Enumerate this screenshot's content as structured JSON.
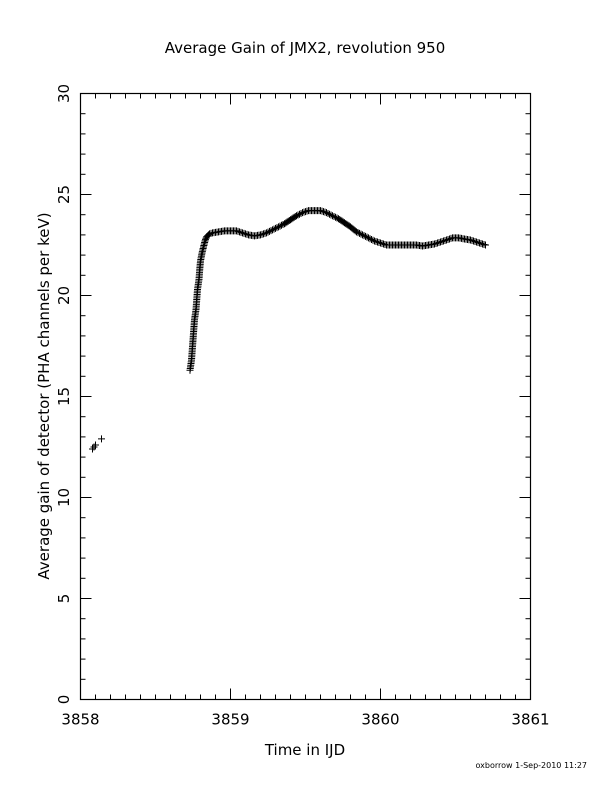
{
  "chart_data": {
    "type": "scatter",
    "title": "Average Gain of JMX2, revolution 950",
    "xlabel": "Time in IJD",
    "ylabel": "Average gain of detector (PHA channels per keV)",
    "xlim": [
      3858,
      3861
    ],
    "ylim": [
      0,
      30
    ],
    "xticks": [
      "3858",
      "3859",
      "3860",
      "3861"
    ],
    "yticks": [
      "0",
      "5",
      "10",
      "15",
      "20",
      "25",
      "30"
    ],
    "grid": false,
    "marker": "plus",
    "series": [
      {
        "points": [
          [
            3858.08,
            12.4
          ],
          [
            3858.09,
            12.5
          ],
          [
            3858.1,
            12.6
          ],
          [
            3858.14,
            12.9
          ],
          [
            3858.73,
            16.3
          ],
          [
            3858.74,
            16.8
          ],
          [
            3858.745,
            17.3
          ],
          [
            3858.75,
            17.8
          ],
          [
            3858.755,
            18.3
          ],
          [
            3858.76,
            18.8
          ],
          [
            3858.77,
            19.3
          ],
          [
            3858.775,
            19.8
          ],
          [
            3858.78,
            20.3
          ],
          [
            3858.79,
            20.8
          ],
          [
            3858.795,
            21.3
          ],
          [
            3858.8,
            21.7
          ],
          [
            3858.81,
            22.1
          ],
          [
            3858.82,
            22.4
          ],
          [
            3858.83,
            22.7
          ],
          [
            3858.84,
            22.9
          ],
          [
            3858.86,
            23.05
          ],
          [
            3858.88,
            23.1
          ],
          [
            3858.92,
            23.15
          ],
          [
            3858.96,
            23.2
          ],
          [
            3859.0,
            23.2
          ],
          [
            3859.04,
            23.2
          ],
          [
            3859.08,
            23.1
          ],
          [
            3859.12,
            23.0
          ],
          [
            3859.16,
            22.95
          ],
          [
            3859.2,
            23.0
          ],
          [
            3859.24,
            23.1
          ],
          [
            3859.28,
            23.25
          ],
          [
            3859.32,
            23.4
          ],
          [
            3859.36,
            23.55
          ],
          [
            3859.4,
            23.75
          ],
          [
            3859.44,
            23.95
          ],
          [
            3859.48,
            24.1
          ],
          [
            3859.52,
            24.2
          ],
          [
            3859.56,
            24.2
          ],
          [
            3859.6,
            24.2
          ],
          [
            3859.64,
            24.1
          ],
          [
            3859.68,
            23.95
          ],
          [
            3859.72,
            23.8
          ],
          [
            3859.76,
            23.6
          ],
          [
            3859.8,
            23.4
          ],
          [
            3859.84,
            23.15
          ],
          [
            3859.88,
            23.0
          ],
          [
            3859.92,
            22.85
          ],
          [
            3859.96,
            22.7
          ],
          [
            3860.0,
            22.6
          ],
          [
            3860.04,
            22.5
          ],
          [
            3860.08,
            22.5
          ],
          [
            3860.12,
            22.5
          ],
          [
            3860.16,
            22.5
          ],
          [
            3860.2,
            22.5
          ],
          [
            3860.24,
            22.5
          ],
          [
            3860.28,
            22.45
          ],
          [
            3860.32,
            22.5
          ],
          [
            3860.36,
            22.55
          ],
          [
            3860.4,
            22.65
          ],
          [
            3860.44,
            22.75
          ],
          [
            3860.48,
            22.85
          ],
          [
            3860.52,
            22.85
          ],
          [
            3860.56,
            22.8
          ],
          [
            3860.6,
            22.75
          ],
          [
            3860.64,
            22.65
          ],
          [
            3860.68,
            22.55
          ],
          [
            3860.7,
            22.5
          ]
        ]
      }
    ]
  },
  "footer": "oxborrow  1-Sep-2010 11:27"
}
